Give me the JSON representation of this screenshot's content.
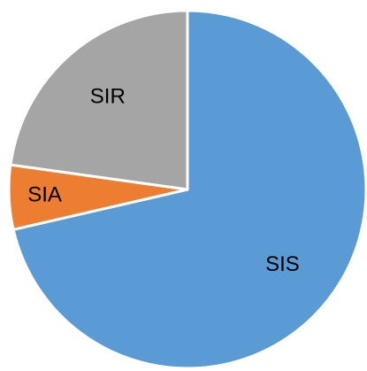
{
  "chart_data": {
    "type": "pie",
    "categories": [
      "SIS",
      "SIA",
      "SIR"
    ],
    "values": [
      71.4,
      5.8,
      22.8
    ],
    "colors": [
      "#5b9bd5",
      "#ed7d31",
      "#a5a5a5"
    ]
  }
}
